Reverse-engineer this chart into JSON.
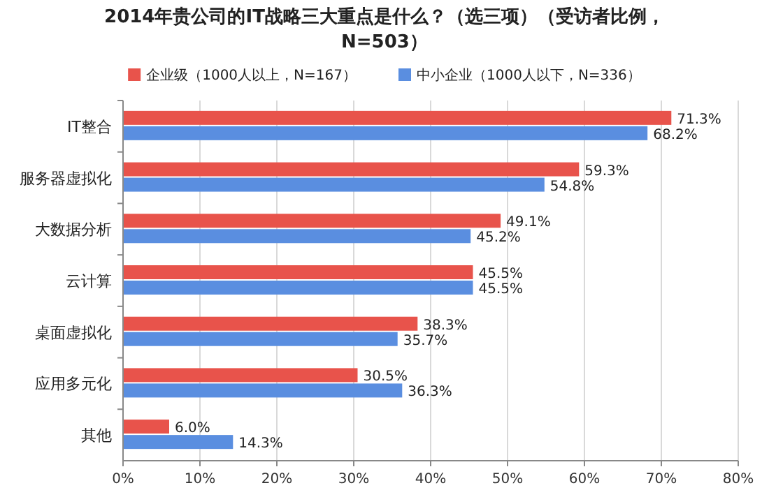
{
  "chart_data": {
    "type": "bar",
    "orientation": "horizontal",
    "title": "2014年贵公司的IT战略三大重点是什么？（选三项）（受访者比例，N=503）",
    "categories": [
      "IT整合",
      "服务器虚拟化",
      "大数据分析",
      "云计算",
      "桌面虚拟化",
      "应用多元化",
      "其他"
    ],
    "series": [
      {
        "name": "企业级（1000人以上，N=167）",
        "color": "#e8534b",
        "values": [
          71.3,
          59.3,
          49.1,
          45.5,
          38.3,
          30.5,
          6.0
        ],
        "value_labels": [
          "71.3%",
          "59.3%",
          "49.1%",
          "45.5%",
          "38.3%",
          "30.5%",
          "6.0%"
        ]
      },
      {
        "name": "中小企业（1000人以下，N=336）",
        "color": "#5a8ee0",
        "values": [
          68.2,
          54.8,
          45.2,
          45.5,
          35.7,
          36.3,
          14.3
        ],
        "value_labels": [
          "68.2%",
          "54.8%",
          "45.2%",
          "45.5%",
          "35.7%",
          "36.3%",
          "14.3%"
        ]
      }
    ],
    "xlim": [
      0,
      80
    ],
    "xticks": [
      {
        "value": 0,
        "label": "0%"
      },
      {
        "value": 10,
        "label": "10%"
      },
      {
        "value": 20,
        "label": "20%"
      },
      {
        "value": 30,
        "label": "30%"
      },
      {
        "value": 40,
        "label": "40%"
      },
      {
        "value": 50,
        "label": "50%"
      },
      {
        "value": 60,
        "label": "60%"
      },
      {
        "value": 70,
        "label": "70%"
      },
      {
        "value": 80,
        "label": "80%"
      }
    ],
    "grid": "x",
    "legend": "top"
  }
}
